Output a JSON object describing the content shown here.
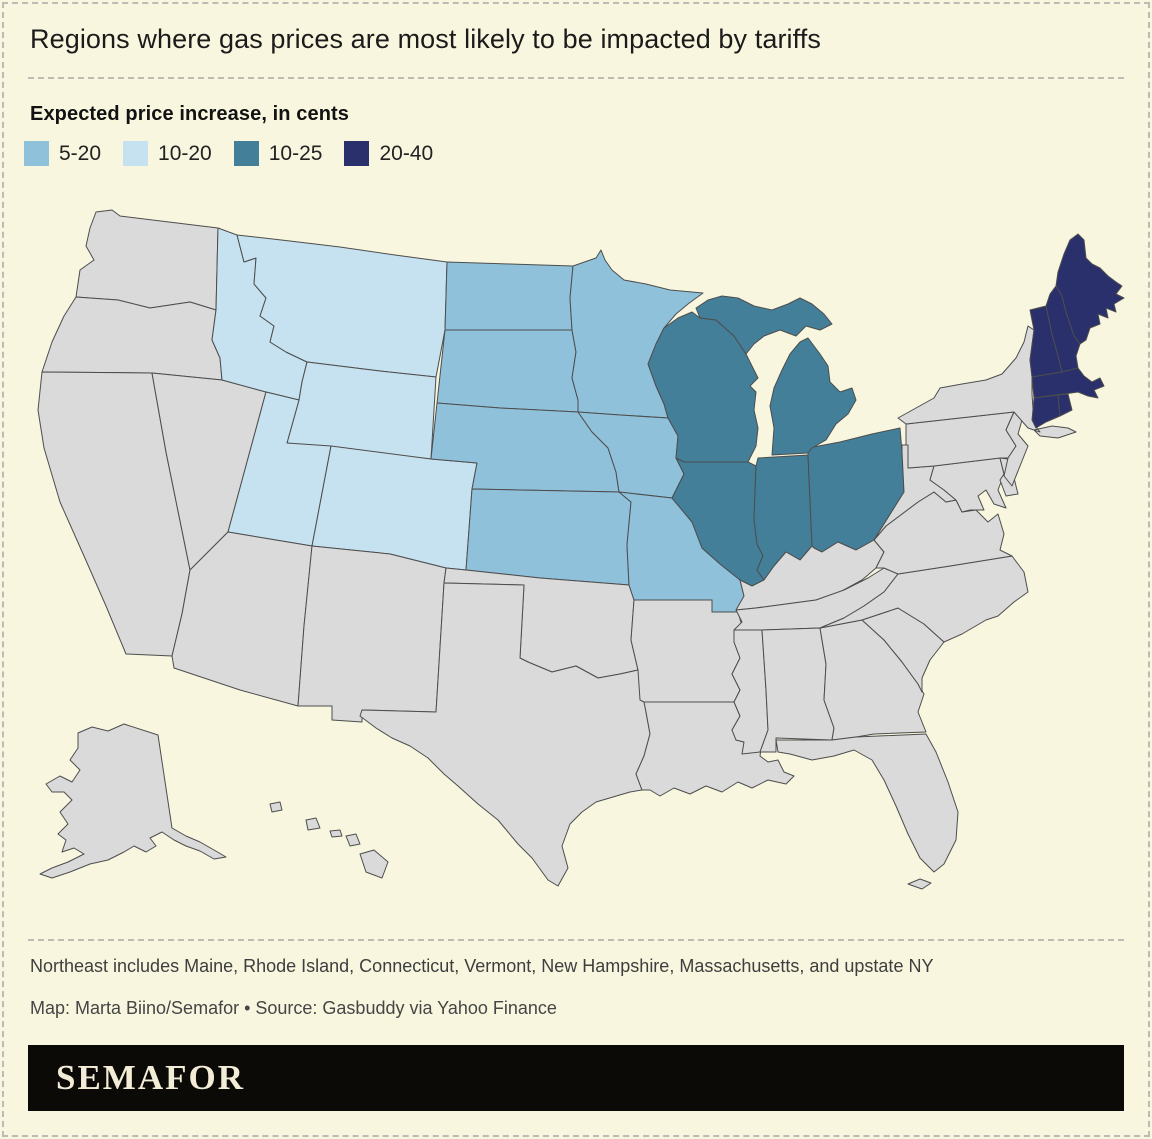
{
  "page": {
    "background": "#f8f6df",
    "dashed_border_color": "#bcbcb4"
  },
  "header": {
    "title": "Regions where gas prices are most likely to be impacted by tariffs"
  },
  "legend": {
    "title": "Expected price increase, in cents",
    "items": [
      {
        "label": "5-20",
        "color": "#90c1db"
      },
      {
        "label": "10-20",
        "color": "#c6e1ef"
      },
      {
        "label": "10-25",
        "color": "#447f9a"
      },
      {
        "label": "20-40",
        "color": "#29306c"
      }
    ]
  },
  "map": {
    "default_fill": "#dadada",
    "border_color": "#4d4d4d",
    "water_background": "#f8f6df",
    "groups": [
      {
        "label": "5-20",
        "color": "#90c1db",
        "codes": [
          "ND",
          "SD",
          "MN",
          "NE",
          "IA",
          "KS",
          "MO"
        ]
      },
      {
        "label": "10-20",
        "color": "#c6e1ef",
        "codes": [
          "MT",
          "ID",
          "WY",
          "UT",
          "CO"
        ]
      },
      {
        "label": "10-25",
        "color": "#447f9a",
        "codes": [
          "WI",
          "MI",
          "IL",
          "IN",
          "OH"
        ]
      },
      {
        "label": "20-40",
        "color": "#29306c",
        "codes": [
          "ME",
          "VT",
          "NH",
          "MA",
          "RI",
          "CT"
        ]
      }
    ]
  },
  "notes": {
    "line1": "Northeast includes Maine, Rhode Island, Connecticut, Vermont, New Hampshire, Massachusetts, and upstate NY",
    "line2": "Map: Marta Biino/Semafor • Source: Gasbuddy via Yahoo Finance"
  },
  "footer": {
    "logo_text": "SEMAFOR",
    "background": "#0c0a06",
    "text_color": "#f3edd7"
  },
  "chart_data": {
    "type": "heatmap",
    "subtype": "choropleth-us-states",
    "title": "Regions where gas prices are most likely to be impacted by tariffs",
    "legend_title": "Expected price increase, in cents",
    "unit": "cents",
    "legend_position": "top-left",
    "series": [
      {
        "name": "5-20",
        "color": "#90c1db",
        "states": [
          "North Dakota",
          "South Dakota",
          "Minnesota",
          "Nebraska",
          "Iowa",
          "Kansas",
          "Missouri"
        ]
      },
      {
        "name": "10-20",
        "color": "#c6e1ef",
        "states": [
          "Montana",
          "Idaho",
          "Wyoming",
          "Utah",
          "Colorado"
        ]
      },
      {
        "name": "10-25",
        "color": "#447f9a",
        "states": [
          "Wisconsin",
          "Michigan",
          "Illinois",
          "Indiana",
          "Ohio"
        ]
      },
      {
        "name": "20-40",
        "color": "#29306c",
        "states": [
          "Maine",
          "Vermont",
          "New Hampshire",
          "Massachusetts",
          "Rhode Island",
          "Connecticut"
        ]
      }
    ],
    "no_data_fill": "#dadada",
    "annotations": [
      "Northeast includes Maine, Rhode Island, Connecticut, Vermont, New Hampshire, Massachusetts, and upstate NY",
      "Map: Marta Biino/Semafor • Source: Gasbuddy via Yahoo Finance"
    ]
  }
}
